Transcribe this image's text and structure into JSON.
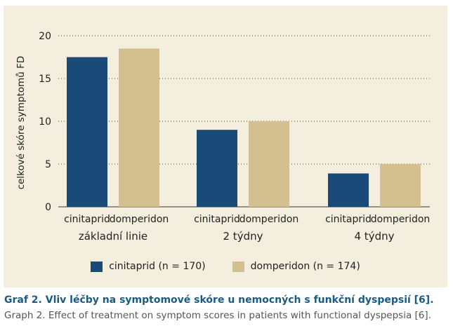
{
  "chart_data": {
    "type": "bar",
    "ylabel": "celkové skóre symptomů FD",
    "ylim": [
      0,
      20
    ],
    "yticks": [
      0,
      5,
      10,
      15,
      20
    ],
    "grid": true,
    "legend_position": "bottom",
    "groups": [
      {
        "label": "základní linie",
        "bars": [
          {
            "label": "cinitaprid",
            "series": "cinitaprid (n = 170)",
            "value": 17.5
          },
          {
            "label": "domperidon",
            "series": "domperidon (n = 174)",
            "value": 18.5
          }
        ]
      },
      {
        "label": "2 týdny",
        "bars": [
          {
            "label": "cinitaprid",
            "series": "cinitaprid (n = 170)",
            "value": 9.0
          },
          {
            "label": "domperidon",
            "series": "domperidon (n = 174)",
            "value": 10.0
          }
        ]
      },
      {
        "label": "4 týdny",
        "bars": [
          {
            "label": "cinitaprid",
            "series": "cinitaprid (n = 170)",
            "value": 3.9
          },
          {
            "label": "domperidon",
            "series": "domperidon (n = 174)",
            "value": 5.0
          }
        ]
      }
    ],
    "series": [
      {
        "name": "cinitaprid (n = 170)",
        "color": "#1a4a78"
      },
      {
        "name": "domperidon (n = 174)",
        "color": "#d3c08e"
      }
    ]
  },
  "caption": {
    "title": "Graf 2. Vliv léčby na symptomové skóre u nemocných s funkční dyspepsií [6].",
    "subtitle": "Graph 2. Effect of treatment on symptom scores in patients with functional dyspepsia [6]."
  },
  "colors": {
    "panel_background": "#f3eedd",
    "caption_title": "#1a5a86",
    "gridline": "#444444"
  }
}
